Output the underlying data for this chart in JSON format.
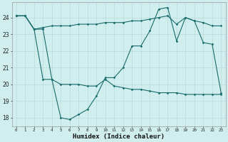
{
  "title": "",
  "xlabel": "Humidex (Indice chaleur)",
  "bg_color": "#d0eeee",
  "grid_color": "#b8dada",
  "line_color": "#1a6b6b",
  "xlim": [
    -0.5,
    23.5
  ],
  "ylim": [
    17.5,
    24.9
  ],
  "yticks": [
    18,
    19,
    20,
    21,
    22,
    23,
    24
  ],
  "xticks": [
    0,
    1,
    2,
    3,
    4,
    5,
    6,
    7,
    8,
    9,
    10,
    11,
    12,
    13,
    14,
    15,
    16,
    17,
    18,
    19,
    20,
    21,
    22,
    23
  ],
  "line1_x": [
    0,
    1,
    2,
    3,
    4,
    5,
    6,
    7,
    8,
    9,
    10,
    11,
    12,
    13,
    14,
    15,
    16,
    17,
    18,
    19,
    20,
    21,
    22,
    23
  ],
  "line1_y": [
    24.1,
    24.1,
    23.3,
    23.4,
    23.5,
    23.5,
    23.5,
    23.6,
    23.6,
    23.6,
    23.7,
    23.7,
    23.7,
    23.8,
    23.8,
    23.9,
    24.0,
    24.1,
    23.6,
    24.0,
    23.8,
    23.7,
    23.5,
    23.5
  ],
  "line2_x": [
    0,
    1,
    2,
    3,
    4,
    5,
    6,
    7,
    8,
    9,
    10,
    11,
    12,
    13,
    14,
    15,
    16,
    17,
    18,
    19,
    20,
    21,
    22,
    23
  ],
  "line2_y": [
    24.1,
    24.1,
    23.3,
    23.3,
    20.3,
    18.0,
    17.9,
    18.2,
    18.5,
    19.3,
    20.4,
    20.4,
    21.0,
    22.3,
    22.3,
    23.2,
    24.5,
    24.6,
    22.6,
    24.0,
    23.8,
    22.5,
    22.4,
    19.5
  ],
  "line3_x": [
    0,
    1,
    2,
    3,
    4,
    5,
    6,
    7,
    8,
    9,
    10,
    11,
    12,
    13,
    14,
    15,
    16,
    17,
    18,
    19,
    20,
    21,
    22,
    23
  ],
  "line3_y": [
    24.1,
    24.1,
    23.3,
    20.3,
    20.3,
    20.0,
    20.0,
    20.0,
    19.9,
    19.9,
    20.3,
    19.9,
    19.8,
    19.7,
    19.7,
    19.6,
    19.5,
    19.5,
    19.5,
    19.4,
    19.4,
    19.4,
    19.4,
    19.4
  ]
}
